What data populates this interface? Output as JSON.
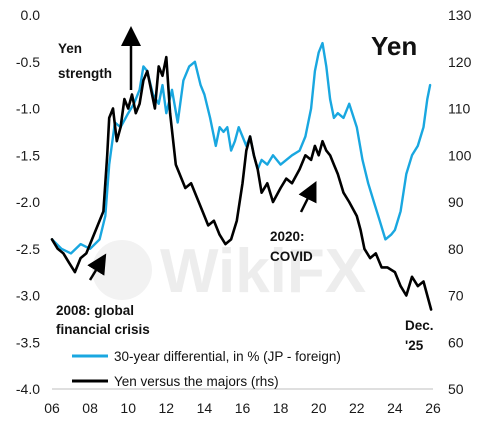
{
  "chart_data": {
    "type": "line",
    "title": "Yen",
    "x_ticks": [
      "06",
      "08",
      "10",
      "12",
      "14",
      "16",
      "18",
      "20",
      "22",
      "24",
      "26"
    ],
    "x_range": [
      2006,
      2026
    ],
    "y_left": {
      "ticks": [
        "0.0",
        "-0.5",
        "-1.0",
        "-1.5",
        "-2.0",
        "-2.5",
        "-3.0",
        "-3.5",
        "-4.0"
      ],
      "range": [
        -4.0,
        0.0
      ]
    },
    "y_right": {
      "ticks": [
        "130",
        "120",
        "110",
        "100",
        "90",
        "80",
        "70",
        "60",
        "50"
      ],
      "range": [
        50,
        130
      ]
    },
    "series": [
      {
        "name": "30-year differential, in % (JP - foreign)",
        "axis": "left",
        "color": "#19a7e0",
        "x": [
          2006.0,
          2006.5,
          2007.0,
          2007.5,
          2008.0,
          2008.5,
          2008.8,
          2009.0,
          2009.3,
          2009.6,
          2010.0,
          2010.3,
          2010.6,
          2010.8,
          2011.0,
          2011.3,
          2011.6,
          2011.8,
          2012.0,
          2012.3,
          2012.6,
          2012.9,
          2013.2,
          2013.5,
          2013.8,
          2014.0,
          2014.3,
          2014.6,
          2014.8,
          2015.0,
          2015.2,
          2015.4,
          2015.6,
          2015.8,
          2016.0,
          2016.2,
          2016.4,
          2016.6,
          2016.8,
          2017.0,
          2017.3,
          2017.6,
          2018.0,
          2018.3,
          2018.6,
          2019.0,
          2019.3,
          2019.6,
          2019.8,
          2020.0,
          2020.2,
          2020.4,
          2020.6,
          2020.8,
          2021.0,
          2021.3,
          2021.6,
          2022.0,
          2022.3,
          2022.6,
          2022.9,
          2023.2,
          2023.5,
          2023.8,
          2024.0,
          2024.3,
          2024.6,
          2024.9,
          2025.2,
          2025.5,
          2025.7,
          2025.85
        ],
        "y": [
          -2.4,
          -2.5,
          -2.55,
          -2.45,
          -2.5,
          -2.4,
          -2.15,
          -1.6,
          -1.15,
          -1.2,
          -1.05,
          -0.95,
          -0.8,
          -0.55,
          -0.6,
          -0.85,
          -0.95,
          -0.75,
          -1.05,
          -0.8,
          -1.15,
          -0.7,
          -0.55,
          -0.5,
          -0.75,
          -0.85,
          -1.1,
          -1.4,
          -1.2,
          -1.25,
          -1.2,
          -1.45,
          -1.35,
          -1.2,
          -1.3,
          -1.4,
          -1.3,
          -1.5,
          -1.65,
          -1.55,
          -1.6,
          -1.5,
          -1.6,
          -1.55,
          -1.5,
          -1.45,
          -1.3,
          -1.0,
          -0.6,
          -0.4,
          -0.3,
          -0.55,
          -0.9,
          -1.1,
          -1.05,
          -1.1,
          -0.95,
          -1.2,
          -1.55,
          -1.8,
          -2.0,
          -2.2,
          -2.4,
          -2.35,
          -2.3,
          -2.1,
          -1.7,
          -1.5,
          -1.4,
          -1.2,
          -0.9,
          -0.75
        ]
      },
      {
        "name": "Yen versus the majors (rhs)",
        "axis": "right",
        "color": "#000000",
        "x": [
          2006.0,
          2006.3,
          2006.6,
          2006.9,
          2007.2,
          2007.5,
          2007.8,
          2008.1,
          2008.4,
          2008.7,
          2008.9,
          2009.0,
          2009.2,
          2009.4,
          2009.6,
          2009.8,
          2010.0,
          2010.2,
          2010.4,
          2010.6,
          2010.8,
          2011.0,
          2011.2,
          2011.4,
          2011.6,
          2011.8,
          2012.0,
          2012.2,
          2012.5,
          2012.8,
          2013.0,
          2013.3,
          2013.6,
          2013.9,
          2014.2,
          2014.5,
          2014.8,
          2015.1,
          2015.4,
          2015.7,
          2016.0,
          2016.2,
          2016.4,
          2016.6,
          2016.8,
          2017.0,
          2017.3,
          2017.6,
          2018.0,
          2018.3,
          2018.6,
          2019.0,
          2019.3,
          2019.6,
          2019.8,
          2020.0,
          2020.2,
          2020.4,
          2020.6,
          2020.8,
          2021.0,
          2021.3,
          2021.6,
          2022.0,
          2022.2,
          2022.4,
          2022.7,
          2023.0,
          2023.3,
          2023.6,
          2024.0,
          2024.3,
          2024.6,
          2024.9,
          2025.2,
          2025.5,
          2025.7,
          2025.9
        ],
        "y": [
          82,
          80,
          79,
          77,
          75,
          78,
          79,
          82,
          85,
          88,
          100,
          108,
          110,
          103,
          106,
          112,
          110,
          113,
          109,
          111,
          116,
          118,
          114,
          110,
          119,
          117,
          121,
          109,
          98,
          95,
          93,
          94,
          91,
          88,
          85,
          86,
          83,
          81,
          82,
          86,
          94,
          101,
          104,
          100,
          97,
          92,
          94,
          90,
          93,
          95,
          94,
          97,
          100,
          99,
          102,
          100,
          103,
          101,
          100,
          98,
          96,
          92,
          90,
          87,
          84,
          80,
          78,
          79,
          76,
          76,
          75,
          72,
          70,
          74,
          72,
          73,
          70,
          67
        ]
      }
    ],
    "annotations": {
      "yen_strength": [
        "Yen",
        "strength"
      ],
      "gfc": [
        "2008: global",
        "financial crisis"
      ],
      "covid": [
        "2020:",
        "COVID"
      ],
      "dec": [
        "Dec.",
        "'25"
      ]
    },
    "watermark": "WikiFX"
  }
}
